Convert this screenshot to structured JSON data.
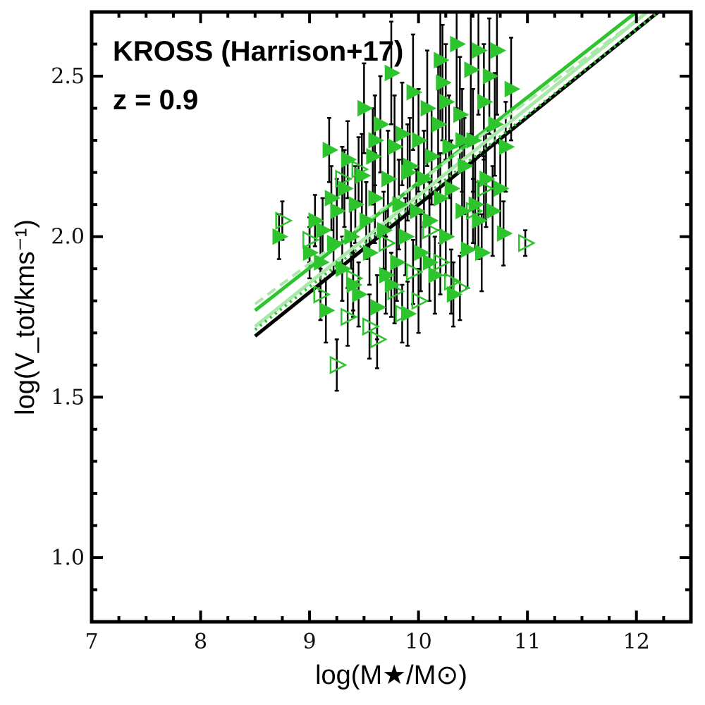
{
  "chart_data": {
    "type": "scatter",
    "title": "",
    "xlabel": "log(M★/M⊙)",
    "ylabel": "log(V_tot/kms⁻¹)",
    "xlim": [
      7,
      12.5
    ],
    "ylim": [
      0.8,
      2.7
    ],
    "xticks": [
      7,
      8,
      9,
      10,
      11,
      12
    ],
    "yticks": [
      1.0,
      1.5,
      2.0,
      2.5
    ],
    "xtick_labels": [
      "7",
      "8",
      "9",
      "10",
      "11",
      "12"
    ],
    "ytick_labels": [
      "1.0",
      "1.5",
      "2.0",
      "2.5"
    ],
    "grid": false,
    "annotations": [
      "KROSS (Harrison+17)",
      "z = 0.9"
    ],
    "colors": {
      "green": "#2ec42e",
      "light_green": "#a9e8a9",
      "black": "#000000"
    },
    "fit_lines": [
      {
        "name": "black fit",
        "x": [
          8.5,
          12.2
        ],
        "y": [
          1.69,
          2.7
        ],
        "color": "#000000",
        "style": "solid"
      },
      {
        "name": "green fit",
        "x": [
          8.5,
          12.0
        ],
        "y": [
          1.77,
          2.7
        ],
        "color": "#2ec42e",
        "style": "solid"
      },
      {
        "name": "green fit dashed",
        "x": [
          8.5,
          12.1
        ],
        "y": [
          1.79,
          2.7
        ],
        "color": "#a9e8a9",
        "style": "dashed"
      },
      {
        "name": "light fit",
        "x": [
          8.5,
          12.1
        ],
        "y": [
          1.72,
          2.7
        ],
        "color": "#a9e8a9",
        "style": "solid"
      },
      {
        "name": "light fit dotted",
        "x": [
          8.5,
          12.2
        ],
        "y": [
          1.71,
          2.7
        ],
        "color": "#2ec42e",
        "style": "dotted"
      }
    ],
    "series": [
      {
        "name": "filled triangles",
        "marker": "triangle-right-filled",
        "points": [
          [
            8.72,
            2.0,
            0.07
          ],
          [
            9.0,
            1.95,
            0.08
          ],
          [
            9.05,
            2.05,
            0.08
          ],
          [
            9.1,
            1.92,
            0.09
          ],
          [
            9.12,
            2.02,
            0.1
          ],
          [
            9.15,
            1.77,
            0.1
          ],
          [
            9.18,
            2.27,
            0.1
          ],
          [
            9.2,
            2.12,
            0.1
          ],
          [
            9.22,
            1.98,
            0.09
          ],
          [
            9.25,
            2.08,
            0.1
          ],
          [
            9.3,
            1.9,
            0.1
          ],
          [
            9.32,
            2.15,
            0.12
          ],
          [
            9.35,
            2.24,
            0.12
          ],
          [
            9.38,
            2.0,
            0.1
          ],
          [
            9.4,
            1.85,
            0.1
          ],
          [
            9.42,
            2.1,
            0.12
          ],
          [
            9.45,
            1.82,
            0.1
          ],
          [
            9.48,
            2.19,
            0.13
          ],
          [
            9.5,
            2.4,
            0.14
          ],
          [
            9.52,
            2.05,
            0.12
          ],
          [
            9.55,
            1.95,
            0.1
          ],
          [
            9.58,
            2.25,
            0.15
          ],
          [
            9.6,
            2.12,
            0.14
          ],
          [
            9.62,
            1.78,
            0.1
          ],
          [
            9.65,
            2.35,
            0.15
          ],
          [
            9.68,
            2.02,
            0.12
          ],
          [
            9.7,
            1.88,
            0.12
          ],
          [
            9.72,
            2.18,
            0.15
          ],
          [
            9.75,
            2.51,
            0.16
          ],
          [
            9.78,
            2.28,
            0.16
          ],
          [
            9.8,
            1.92,
            0.12
          ],
          [
            9.82,
            2.1,
            0.14
          ],
          [
            9.85,
            2.32,
            0.16
          ],
          [
            9.88,
            2.0,
            0.12
          ],
          [
            9.9,
            1.76,
            0.1
          ],
          [
            9.92,
            2.22,
            0.15
          ],
          [
            9.95,
            2.45,
            0.18
          ],
          [
            9.98,
            2.08,
            0.13
          ],
          [
            10.0,
            2.3,
            0.16
          ],
          [
            10.02,
            1.95,
            0.12
          ],
          [
            10.05,
            2.18,
            0.15
          ],
          [
            10.08,
            2.4,
            0.18
          ],
          [
            10.1,
            2.05,
            0.12
          ],
          [
            10.12,
            2.25,
            0.15
          ],
          [
            10.15,
            1.88,
            0.12
          ],
          [
            10.18,
            2.35,
            0.18
          ],
          [
            10.2,
            2.12,
            0.14
          ],
          [
            10.22,
            2.48,
            0.18
          ],
          [
            10.25,
            2.0,
            0.12
          ],
          [
            10.28,
            2.28,
            0.16
          ],
          [
            10.3,
            2.15,
            0.15
          ],
          [
            10.32,
            1.82,
            0.1
          ],
          [
            10.35,
            2.6,
            0.2
          ],
          [
            10.38,
            2.38,
            0.18
          ],
          [
            10.4,
            2.08,
            0.13
          ],
          [
            10.42,
            2.22,
            0.15
          ],
          [
            10.45,
            1.96,
            0.12
          ],
          [
            10.48,
            2.52,
            0.2
          ],
          [
            10.5,
            2.3,
            0.16
          ],
          [
            10.52,
            2.1,
            0.14
          ],
          [
            10.55,
            2.58,
            0.2
          ],
          [
            10.58,
            1.95,
            0.12
          ],
          [
            10.6,
            2.42,
            0.18
          ],
          [
            10.62,
            2.18,
            0.15
          ],
          [
            10.65,
            2.5,
            0.18
          ],
          [
            10.68,
            2.08,
            0.14
          ],
          [
            10.7,
            2.35,
            0.16
          ],
          [
            10.72,
            2.58,
            0.2
          ],
          [
            10.75,
            2.15,
            0.14
          ],
          [
            10.78,
            2.01,
            0.1
          ],
          [
            10.8,
            2.28,
            0.14
          ],
          [
            10.85,
            2.46,
            0.16
          ],
          [
            9.6,
            2.3,
            0.14
          ],
          [
            9.75,
            1.85,
            0.1
          ],
          [
            9.9,
            2.2,
            0.15
          ],
          [
            10.1,
            1.92,
            0.12
          ],
          [
            10.25,
            2.42,
            0.18
          ],
          [
            10.4,
            2.3,
            0.16
          ],
          [
            10.55,
            2.05,
            0.12
          ],
          [
            10.2,
            2.55,
            0.2
          ]
        ]
      },
      {
        "name": "open triangles",
        "marker": "triangle-right-open",
        "points": [
          [
            8.75,
            2.05,
            0.06
          ],
          [
            9.0,
            1.99,
            0.07
          ],
          [
            9.1,
            1.82,
            0.08
          ],
          [
            9.25,
            1.6,
            0.08
          ],
          [
            9.3,
            2.18,
            0.1
          ],
          [
            9.35,
            1.75,
            0.09
          ],
          [
            9.4,
            1.87,
            0.1
          ],
          [
            9.45,
            2.21,
            0.1
          ],
          [
            9.55,
            1.72,
            0.1
          ],
          [
            9.62,
            1.68,
            0.09
          ],
          [
            9.7,
            1.98,
            0.1
          ],
          [
            9.78,
            1.83,
            0.1
          ],
          [
            9.85,
            1.76,
            0.09
          ],
          [
            9.95,
            1.89,
            0.1
          ],
          [
            10.0,
            1.8,
            0.1
          ],
          [
            10.1,
            2.02,
            0.1
          ],
          [
            10.2,
            1.92,
            0.1
          ],
          [
            10.3,
            1.86,
            0.1
          ],
          [
            10.38,
            1.84,
            0.1
          ],
          [
            10.5,
            2.08,
            0.1
          ],
          [
            10.6,
            2.15,
            0.1
          ],
          [
            10.98,
            1.98,
            0.04
          ]
        ]
      }
    ]
  }
}
